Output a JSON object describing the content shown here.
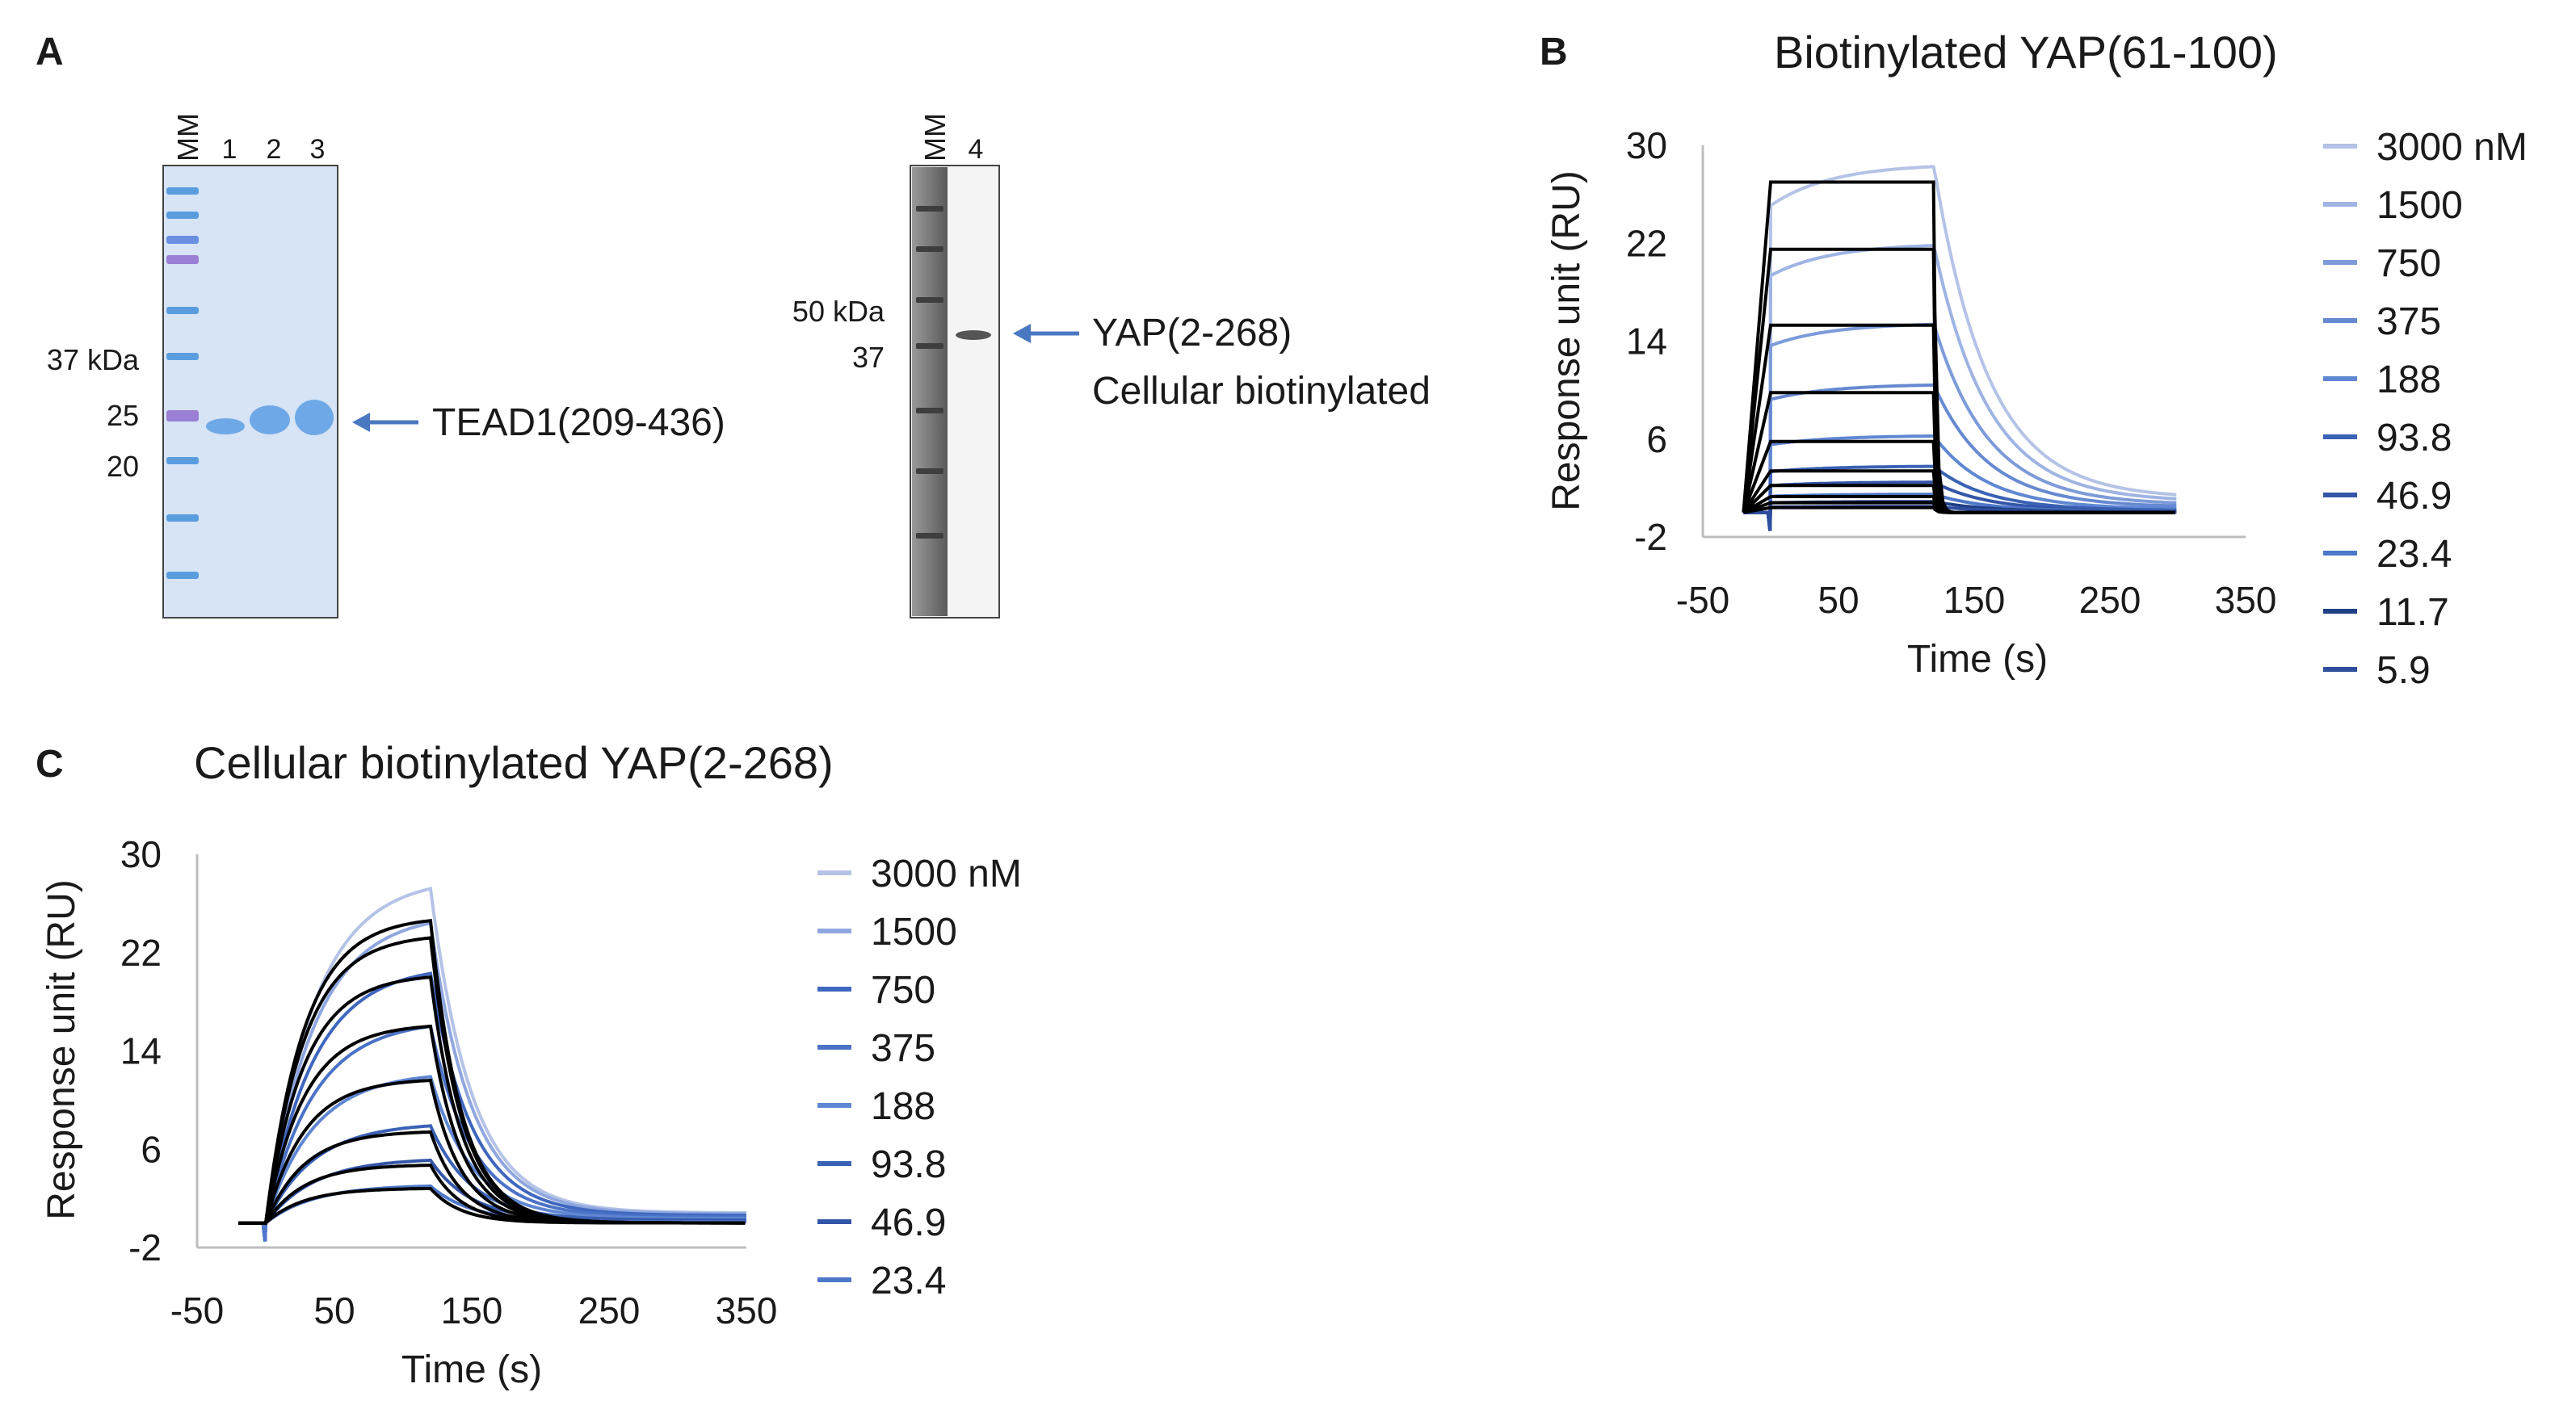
{
  "panel_a": {
    "letter": "A",
    "gel1": {
      "mm_label": "MM",
      "lanes": [
        "1",
        "2",
        "3"
      ],
      "mw_markers": [
        "37 kDa",
        "25",
        "20"
      ],
      "band_label": "TEAD1(209-436)",
      "colors": {
        "bg": "#d6e4f5",
        "ladder": "#5a9ddf",
        "band": "#6fa8e6",
        "purple": "#9b7fd4"
      }
    },
    "gel2": {
      "mm_label": "MM",
      "lanes": [
        "4"
      ],
      "mw_markers": [
        "50 kDa",
        "37"
      ],
      "band_label_line1": "YAP(2-268)",
      "band_label_line2": "Cellular biotinylated",
      "colors": {
        "bg": "#f4f4f4",
        "ladder_bg": "#6e6e6e",
        "band": "#555555"
      }
    },
    "arrow_color": "#4a78c0"
  },
  "chart_data": [
    {
      "panel": "B",
      "type": "line",
      "title": "Biotinylated YAP(61-100)",
      "xlabel": "Time (s)",
      "ylabel": "Response unit (RU)",
      "xlim": [
        -50,
        350
      ],
      "ylim": [
        -2,
        30
      ],
      "xticks": [
        -50,
        50,
        150,
        250,
        350
      ],
      "yticks": [
        -2,
        6,
        14,
        22,
        30
      ],
      "grid": false,
      "legend_position": "right",
      "injection_start": 0,
      "injection_end": 120,
      "data_end": 300,
      "series": [
        {
          "name": "3000 nM",
          "color": "#b4c3e6",
          "plateau": 28.5,
          "fit": 27.0
        },
        {
          "name": "1500",
          "color": "#9eb4e3",
          "plateau": 22.0,
          "fit": 21.5
        },
        {
          "name": "750",
          "color": "#7d9bd9",
          "plateau": 15.5,
          "fit": 15.3
        },
        {
          "name": "375",
          "color": "#6689d2",
          "plateau": 10.5,
          "fit": 9.8
        },
        {
          "name": "188",
          "color": "#5f87d3",
          "plateau": 6.3,
          "fit": 5.8
        },
        {
          "name": "93.8",
          "color": "#3a62b5",
          "plateau": 3.8,
          "fit": 3.4
        },
        {
          "name": "46.9",
          "color": "#3456a8",
          "plateau": 2.5,
          "fit": 2.2
        },
        {
          "name": "23.4",
          "color": "#4d77c9",
          "plateau": 1.5,
          "fit": 1.3
        },
        {
          "name": "11.7",
          "color": "#1f3f86",
          "plateau": 0.9,
          "fit": 0.8
        },
        {
          "name": "5.9",
          "color": "#2f4f9e",
          "plateau": 0.5,
          "fit": 0.4
        }
      ]
    },
    {
      "panel": "C",
      "type": "line",
      "title": "Cellular biotinylated YAP(2-268)",
      "xlabel": "Time (s)",
      "ylabel": "Response unit (RU)",
      "xlim": [
        -50,
        350
      ],
      "ylim": [
        -2,
        30
      ],
      "xticks": [
        -50,
        50,
        150,
        250,
        350
      ],
      "yticks": [
        -2,
        6,
        14,
        22,
        30
      ],
      "grid": false,
      "legend_position": "right",
      "injection_start": 0,
      "injection_end": 120,
      "data_end": 350,
      "series": [
        {
          "name": "3000 nM",
          "color": "#b4c3e6",
          "peak": 27.2,
          "fit": 24.6
        },
        {
          "name": "1500",
          "color": "#8fa7df",
          "peak": 24.4,
          "fit": 23.2
        },
        {
          "name": "750",
          "color": "#3f67bf",
          "peak": 20.3,
          "fit": 20.0
        },
        {
          "name": "375",
          "color": "#4a72c6",
          "peak": 16.0,
          "fit": 16.0
        },
        {
          "name": "188",
          "color": "#5f87d3",
          "peak": 11.9,
          "fit": 11.6
        },
        {
          "name": "93.8",
          "color": "#3a62b5",
          "peak": 7.9,
          "fit": 7.4
        },
        {
          "name": "46.9",
          "color": "#3456a8",
          "peak": 5.1,
          "fit": 4.7
        },
        {
          "name": "23.4",
          "color": "#4d77c9",
          "peak": 3.0,
          "fit": 2.8
        }
      ]
    }
  ]
}
